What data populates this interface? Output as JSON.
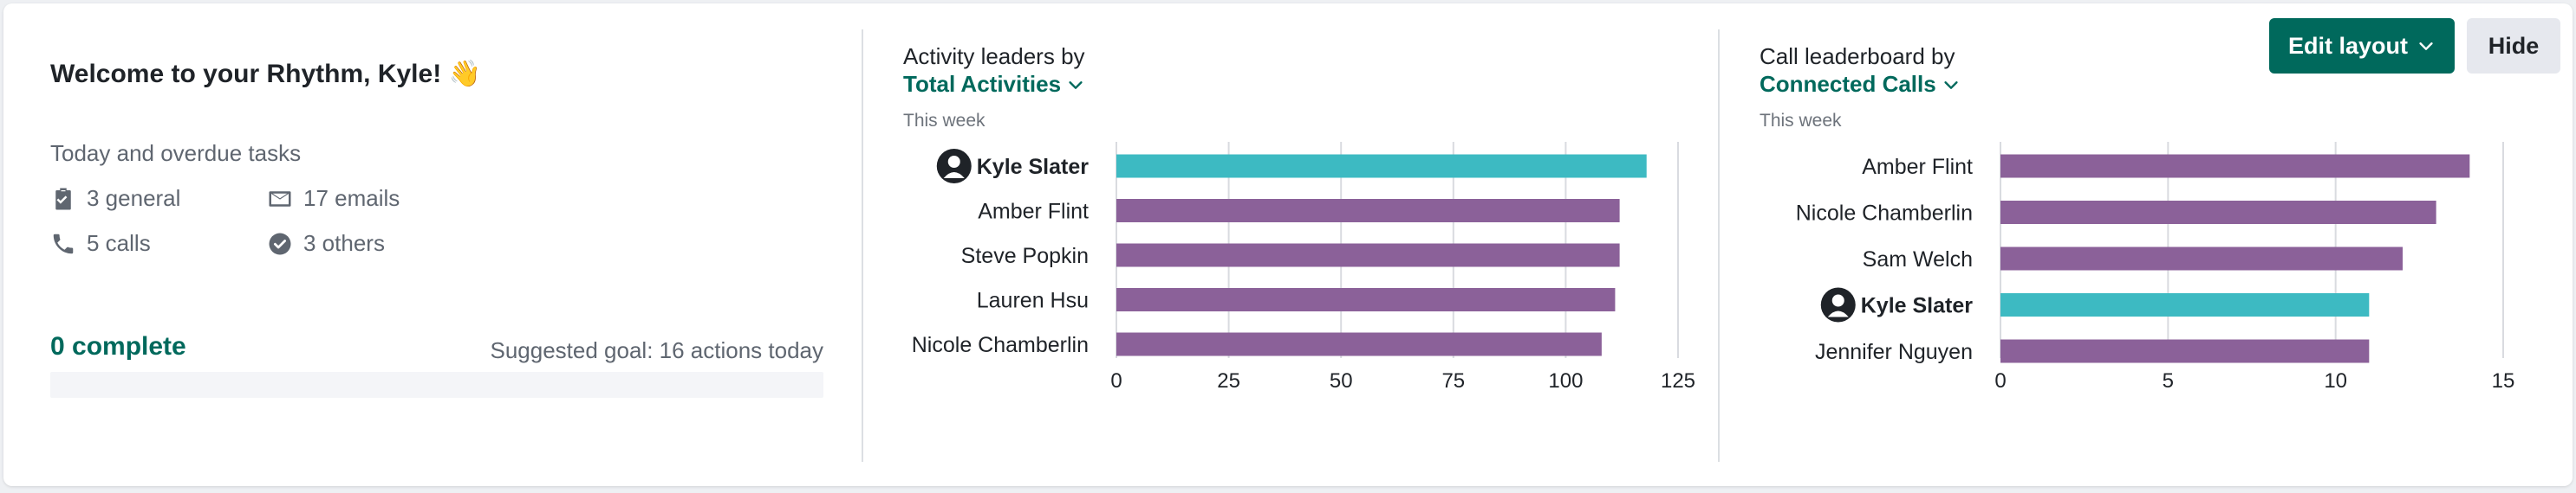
{
  "welcome": {
    "title": "Welcome to your Rhythm, Kyle! 👋",
    "tasks_heading": "Today and overdue tasks",
    "tasks": [
      {
        "label": "3 general",
        "icon": "clipboard-check-icon"
      },
      {
        "label": "17 emails",
        "icon": "envelope-icon"
      },
      {
        "label": "5 calls",
        "icon": "phone-icon"
      },
      {
        "label": "3 others",
        "icon": "check-circle-icon"
      }
    ],
    "complete_label": "0 complete",
    "goal_label": "Suggested goal: 16 actions today",
    "progress_fraction": 0
  },
  "header": {
    "edit_layout_label": "Edit layout",
    "hide_label": "Hide"
  },
  "colors": {
    "accent": "#00695c",
    "bar_default": "#8b6199",
    "bar_highlight": "#3dbac2",
    "grid": "#d9dbe0",
    "text": "#1f2328"
  },
  "activity": {
    "label": "Activity leaders by",
    "metric": "Total Activities",
    "period": "This week"
  },
  "calls": {
    "label": "Call leaderboard by",
    "metric": "Connected Calls",
    "period": "This week"
  },
  "chart_data": [
    {
      "type": "bar",
      "orientation": "horizontal",
      "categories": [
        "Kyle Slater",
        "Amber Flint",
        "Steve Popkin",
        "Lauren Hsu",
        "Nicole Chamberlin"
      ],
      "values": [
        118,
        112,
        112,
        111,
        108
      ],
      "highlight": "Kyle Slater",
      "xlim": [
        0,
        125
      ],
      "xticks": [
        0,
        25,
        50,
        75,
        100,
        125
      ],
      "grid": true
    },
    {
      "type": "bar",
      "orientation": "horizontal",
      "categories": [
        "Amber Flint",
        "Nicole Chamberlin",
        "Sam Welch",
        "Kyle Slater",
        "Jennifer Nguyen"
      ],
      "values": [
        14,
        13,
        12,
        11,
        11
      ],
      "highlight": "Kyle Slater",
      "xlim": [
        0,
        15
      ],
      "xticks": [
        0,
        5,
        10,
        15
      ],
      "grid": true
    }
  ]
}
